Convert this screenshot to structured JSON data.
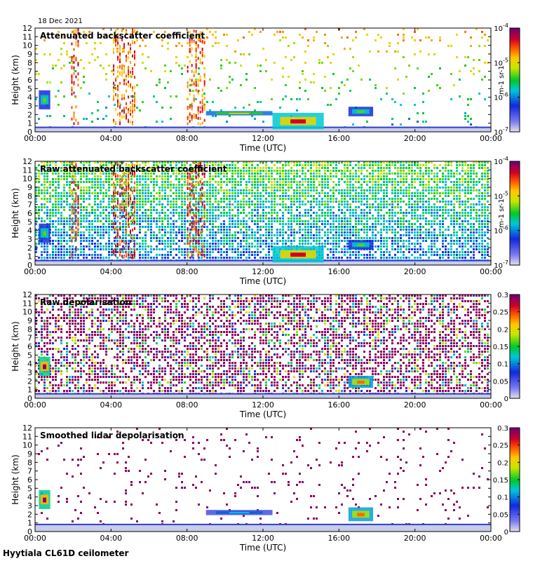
{
  "date_label": "18 Dec 2021",
  "footer_label": "Hyytiala CL61D ceilometer",
  "chart_data": [
    {
      "type": "heatmap",
      "title": "Attenuated backscatter coefficient",
      "xlabel": "Time (UTC)",
      "ylabel": "Height (km)",
      "xticks": [
        "00:00",
        "04:00",
        "08:00",
        "12:00",
        "16:00",
        "20:00",
        "00:00"
      ],
      "yticks": [
        "0",
        "1",
        "2",
        "3",
        "4",
        "5",
        "6",
        "7",
        "8",
        "9",
        "10",
        "11",
        "12"
      ],
      "xlim": [
        0,
        24
      ],
      "ylim": [
        0,
        12
      ],
      "colorbar": {
        "scale": "log",
        "ticks": [
          "10-7",
          "10-6",
          "10-5",
          "10-4"
        ],
        "unit": "m-1 sr-1",
        "range": [
          1e-07,
          0.0001
        ]
      },
      "features": [
        {
          "kind": "noise_upper",
          "level": 0.55
        },
        {
          "kind": "boundary_layer",
          "t0": 0,
          "t1": 24,
          "h0": 0,
          "h1": 0.6
        },
        {
          "kind": "cloud",
          "t0": 0.2,
          "t1": 0.8,
          "h0": 2.6,
          "h1": 4.8,
          "value": 0.55
        },
        {
          "kind": "cloud",
          "t0": 12.5,
          "t1": 15.2,
          "h0": 0.3,
          "h1": 2.2,
          "value": 0.9
        },
        {
          "kind": "cloud",
          "t0": 16.5,
          "t1": 17.8,
          "h0": 1.8,
          "h1": 2.9,
          "value": 0.55
        },
        {
          "kind": "layer",
          "t0": 9.0,
          "t1": 12.5,
          "h0": 1.9,
          "h1": 2.4,
          "value": 0.7
        },
        {
          "kind": "curtain",
          "t0": 1.9,
          "t1": 2.4,
          "h0": 1,
          "h1": 12,
          "value": 0.85
        },
        {
          "kind": "curtain",
          "t0": 4.1,
          "t1": 5.4,
          "h0": 1,
          "h1": 12,
          "value": 0.8
        },
        {
          "kind": "curtain",
          "t0": 8.0,
          "t1": 9.0,
          "h0": 1,
          "h1": 12,
          "value": 0.8
        }
      ]
    },
    {
      "type": "heatmap",
      "title": "Raw attenuated backscatter coefficient",
      "xlabel": "Time (UTC)",
      "ylabel": "Height (km)",
      "xticks": [
        "00:00",
        "04:00",
        "08:00",
        "12:00",
        "16:00",
        "20:00",
        "00:00"
      ],
      "yticks": [
        "0",
        "1",
        "2",
        "3",
        "4",
        "5",
        "6",
        "7",
        "8",
        "9",
        "10",
        "11",
        "12"
      ],
      "xlim": [
        0,
        24
      ],
      "ylim": [
        0,
        12
      ],
      "colorbar": {
        "scale": "log",
        "ticks": [
          "10-7",
          "10-6",
          "10-5",
          "10-4"
        ],
        "unit": "m-1 sr-1",
        "range": [
          1e-07,
          0.0001
        ]
      },
      "features": [
        {
          "kind": "noise_dense",
          "level": 0.5
        },
        {
          "kind": "boundary_layer",
          "t0": 0,
          "t1": 24,
          "h0": 0,
          "h1": 0.6
        },
        {
          "kind": "cloud",
          "t0": 0.2,
          "t1": 0.8,
          "h0": 2.6,
          "h1": 4.8,
          "value": 0.55
        },
        {
          "kind": "cloud",
          "t0": 12.5,
          "t1": 15.2,
          "h0": 0.3,
          "h1": 2.2,
          "value": 0.9
        },
        {
          "kind": "cloud",
          "t0": 16.5,
          "t1": 17.8,
          "h0": 1.8,
          "h1": 2.9,
          "value": 0.55
        },
        {
          "kind": "curtain",
          "t0": 1.9,
          "t1": 2.4,
          "h0": 1,
          "h1": 12,
          "value": 0.85
        },
        {
          "kind": "curtain",
          "t0": 4.1,
          "t1": 5.4,
          "h0": 1,
          "h1": 12,
          "value": 0.85
        },
        {
          "kind": "curtain",
          "t0": 8.0,
          "t1": 9.0,
          "h0": 1,
          "h1": 12,
          "value": 0.85
        }
      ]
    },
    {
      "type": "heatmap",
      "title": "Raw depolarisation",
      "xlabel": "Time (UTC)",
      "ylabel": "Height (km)",
      "xticks": [
        "00:00",
        "04:00",
        "08:00",
        "12:00",
        "16:00",
        "20:00",
        "00:00"
      ],
      "yticks": [
        "0",
        "1",
        "2",
        "3",
        "4",
        "5",
        "6",
        "7",
        "8",
        "9",
        "10",
        "11",
        "12"
      ],
      "xlim": [
        0,
        24
      ],
      "ylim": [
        0,
        12
      ],
      "colorbar": {
        "scale": "linear",
        "ticks": [
          "0",
          "0.05",
          "0.1",
          "0.15",
          "0.2",
          "0.25",
          "0.3"
        ],
        "range": [
          0,
          0.3
        ]
      },
      "features": [
        {
          "kind": "noise_depol",
          "level": 0.6
        },
        {
          "kind": "boundary_layer",
          "t0": 0,
          "t1": 24,
          "h0": 0,
          "h1": 0.6
        },
        {
          "kind": "cloud",
          "t0": 0.2,
          "t1": 0.8,
          "h0": 2.6,
          "h1": 4.8,
          "value": 0.98
        },
        {
          "kind": "cloud",
          "t0": 16.5,
          "t1": 17.8,
          "h0": 1.2,
          "h1": 2.6,
          "value": 0.8
        }
      ]
    },
    {
      "type": "heatmap",
      "title": "Smoothed lidar depolarisation",
      "xlabel": "Time (UTC)",
      "ylabel": "Height (km)",
      "xticks": [
        "00:00",
        "04:00",
        "08:00",
        "12:00",
        "16:00",
        "20:00",
        "00:00"
      ],
      "yticks": [
        "0",
        "1",
        "2",
        "3",
        "4",
        "5",
        "6",
        "7",
        "8",
        "9",
        "10",
        "11",
        "12"
      ],
      "xlim": [
        0,
        24
      ],
      "ylim": [
        0,
        12
      ],
      "colorbar": {
        "scale": "linear",
        "ticks": [
          "0",
          "0.05",
          "0.1",
          "0.15",
          "0.2",
          "0.25",
          "0.3"
        ],
        "range": [
          0,
          0.3
        ]
      },
      "features": [
        {
          "kind": "noise_sparse",
          "level": 0.1
        },
        {
          "kind": "boundary_layer",
          "t0": 0,
          "t1": 24,
          "h0": 0,
          "h1": 0.9
        },
        {
          "kind": "cloud",
          "t0": 0.2,
          "t1": 0.8,
          "h0": 2.6,
          "h1": 4.8,
          "value": 0.98
        },
        {
          "kind": "cloud",
          "t0": 16.5,
          "t1": 17.8,
          "h0": 1.2,
          "h1": 2.8,
          "value": 0.8
        },
        {
          "kind": "layer",
          "t0": 9.0,
          "t1": 12.5,
          "h0": 1.9,
          "h1": 2.5,
          "value": 0.4
        }
      ]
    }
  ]
}
